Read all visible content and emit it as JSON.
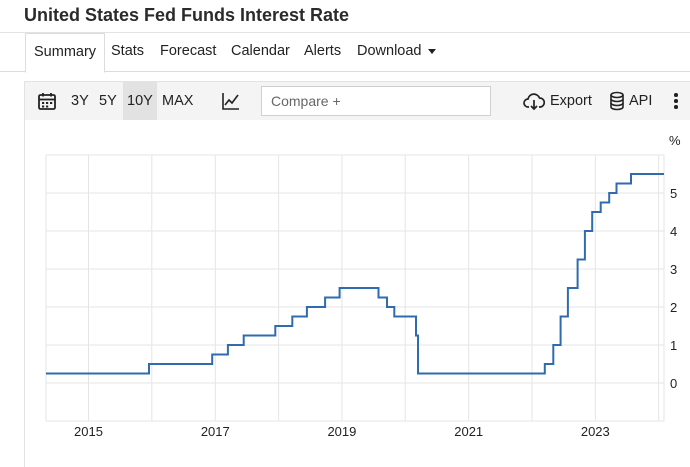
{
  "page": {
    "title": "United States Fed Funds Interest Rate"
  },
  "tabs": [
    {
      "label": "Summary",
      "active": true
    },
    {
      "label": "Stats",
      "active": false
    },
    {
      "label": "Forecast",
      "active": false
    },
    {
      "label": "Calendar",
      "active": false
    },
    {
      "label": "Alerts",
      "active": false
    },
    {
      "label": "Download",
      "active": false
    }
  ],
  "toolbar": {
    "ranges": [
      "3Y",
      "5Y",
      "10Y",
      "MAX"
    ],
    "selected_range": "10Y",
    "compare_placeholder": "Compare +",
    "export_label": "Export",
    "api_label": "API",
    "icons": [
      "calendar-icon",
      "chart-type-icon",
      "cloud-download-icon",
      "database-icon",
      "more-options-icon"
    ]
  },
  "colors": {
    "line": "#2f6bad",
    "grid": "#e5e5e5",
    "toolbar_bg": "#f4f4f4",
    "selected_range_bg": "#e2e2e2"
  },
  "chart_data": {
    "type": "line",
    "title": "",
    "xlabel": "",
    "ylabel": "%",
    "ylim": [
      -1,
      6
    ],
    "xlim": [
      "2014-05-01",
      "2024-02-01"
    ],
    "y_ticks": [
      "0",
      "1",
      "2",
      "3",
      "4",
      "5"
    ],
    "x_ticks": [
      "2015",
      "2017",
      "2019",
      "2021",
      "2023"
    ],
    "grid": true,
    "x": [
      "2014-05-01",
      "2015-12-16",
      "2016-12-14",
      "2017-03-15",
      "2017-06-14",
      "2017-12-13",
      "2018-03-21",
      "2018-06-13",
      "2018-09-26",
      "2018-12-19",
      "2019-07-31",
      "2019-09-18",
      "2019-10-30",
      "2020-03-03",
      "2020-03-15",
      "2022-03-16",
      "2022-05-04",
      "2022-06-15",
      "2022-07-27",
      "2022-09-21",
      "2022-11-02",
      "2022-12-14",
      "2023-02-01",
      "2023-03-22",
      "2023-05-03",
      "2023-07-26",
      "2024-02-01"
    ],
    "values": [
      0.25,
      0.5,
      0.75,
      1.0,
      1.25,
      1.5,
      1.75,
      2.0,
      2.25,
      2.5,
      2.25,
      2.0,
      1.75,
      1.25,
      0.25,
      0.5,
      1.0,
      1.75,
      2.5,
      3.25,
      4.0,
      4.5,
      4.75,
      5.0,
      5.25,
      5.5,
      5.5
    ]
  }
}
